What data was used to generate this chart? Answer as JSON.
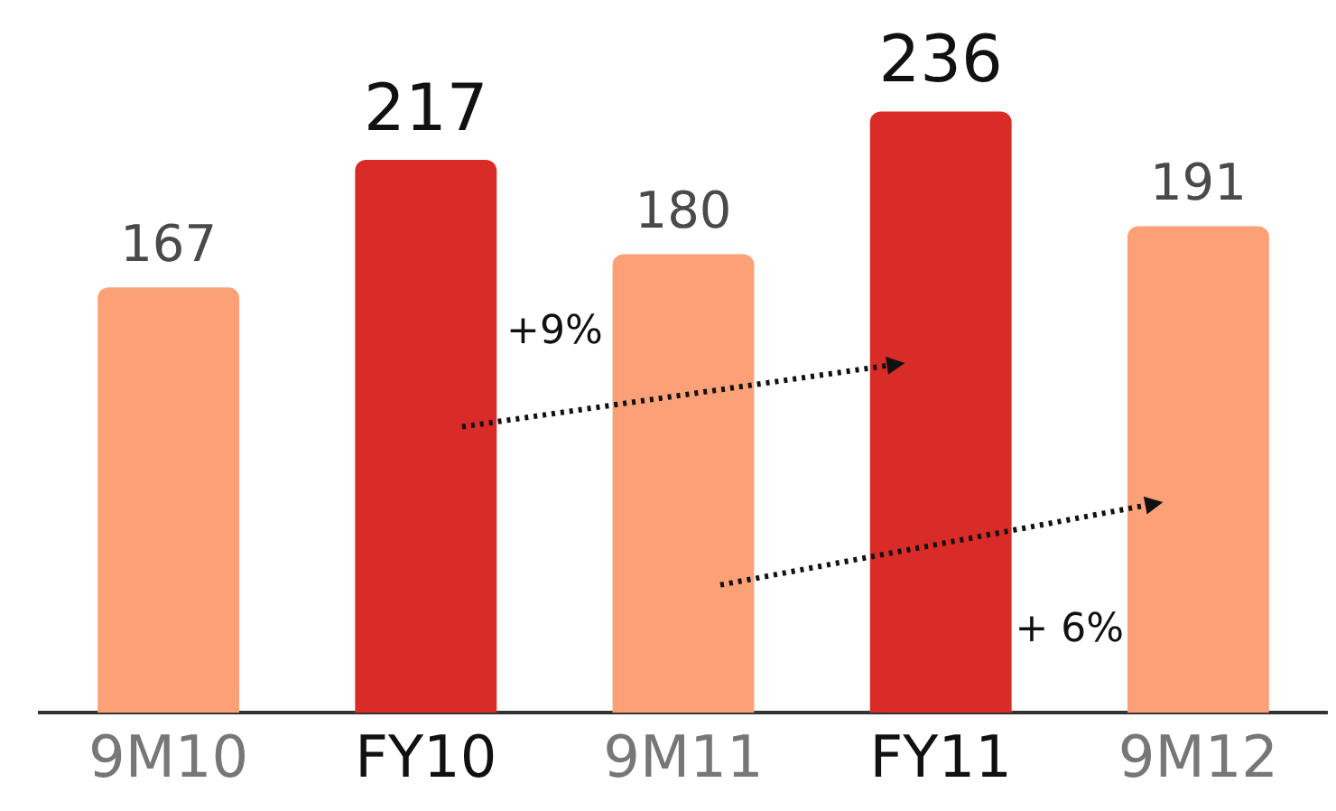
{
  "chart_data": {
    "type": "bar",
    "categories": [
      "9M10",
      "FY10",
      "9M11",
      "FY11",
      "9M12"
    ],
    "values": [
      167,
      217,
      180,
      236,
      191
    ],
    "colors": [
      "#fba077",
      "#d92b27",
      "#fba077",
      "#d92b27",
      "#fba077"
    ],
    "tick_labels": "x",
    "data_labels": true,
    "grid": false,
    "legend": false,
    "annotations": [
      "+9%",
      "+ 6%"
    ]
  }
}
